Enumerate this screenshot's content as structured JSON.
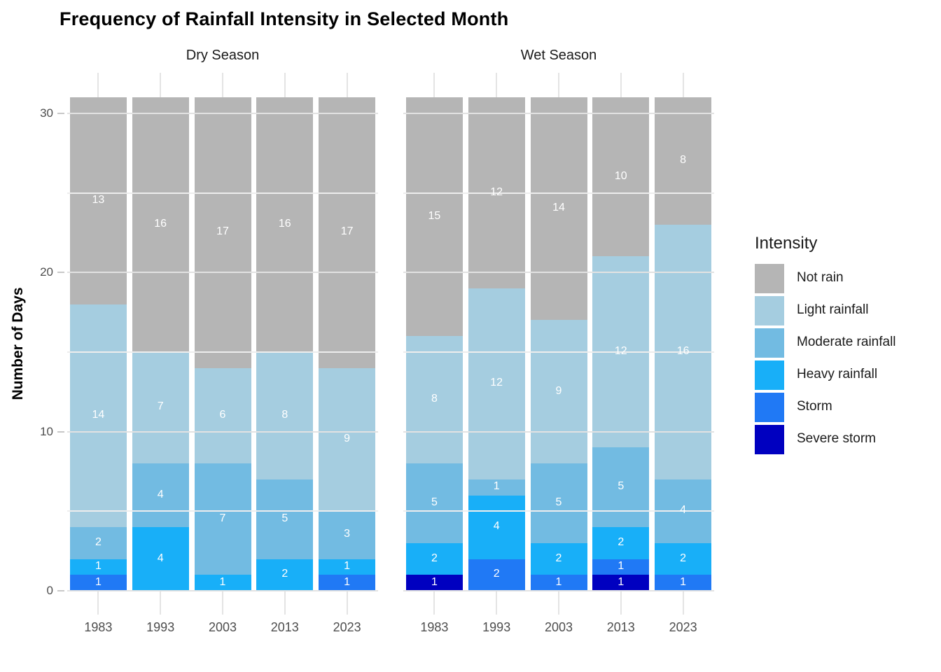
{
  "chart_data": {
    "type": "bar",
    "variant": "stacked-vertical-faceted",
    "title": "Frequency of Rainfall Intensity in Selected Month",
    "ylabel": "Number of Days",
    "xlabel": "",
    "ylim": [
      0,
      31
    ],
    "yticks": [
      0,
      10,
      20,
      30
    ],
    "minor_gridlines": [
      5,
      15,
      25
    ],
    "grid": "on",
    "legend_position": "right",
    "legend_title": "Intensity",
    "bar_label_color": "#FFFFFF",
    "intensities": [
      {
        "name": "Not rain",
        "color": "#B5B5B5"
      },
      {
        "name": "Light rainfall",
        "color": "#A5CDE0"
      },
      {
        "name": "Moderate rainfall",
        "color": "#72BBE2"
      },
      {
        "name": "Heavy rainfall",
        "color": "#18AFF8"
      },
      {
        "name": "Storm",
        "color": "#2079F5"
      },
      {
        "name": "Severe storm",
        "color": "#0000C0"
      }
    ],
    "stack_order": [
      "Severe storm",
      "Storm",
      "Heavy rainfall",
      "Moderate rainfall",
      "Light rainfall",
      "Not rain"
    ],
    "categories": [
      "1983",
      "1993",
      "2003",
      "2013",
      "2023"
    ],
    "facets": [
      {
        "label": "Dry Season",
        "bars": [
          {
            "year": "1983",
            "values": [
              0,
              1,
              1,
              2,
              14,
              13
            ]
          },
          {
            "year": "1993",
            "values": [
              0,
              0,
              4,
              4,
              7,
              16
            ]
          },
          {
            "year": "2003",
            "values": [
              0,
              0,
              1,
              7,
              6,
              17
            ]
          },
          {
            "year": "2013",
            "values": [
              0,
              0,
              2,
              5,
              8,
              16
            ]
          },
          {
            "year": "2023",
            "values": [
              0,
              1,
              1,
              3,
              9,
              17
            ]
          }
        ]
      },
      {
        "label": "Wet Season",
        "bars": [
          {
            "year": "1983",
            "values": [
              1,
              0,
              2,
              5,
              8,
              15
            ]
          },
          {
            "year": "1993",
            "values": [
              0,
              2,
              4,
              1,
              12,
              12
            ]
          },
          {
            "year": "2003",
            "values": [
              0,
              1,
              2,
              5,
              9,
              14
            ]
          },
          {
            "year": "2013",
            "values": [
              1,
              1,
              2,
              5,
              12,
              10
            ]
          },
          {
            "year": "2023",
            "values": [
              0,
              1,
              2,
              4,
              16,
              8
            ]
          }
        ]
      }
    ]
  }
}
